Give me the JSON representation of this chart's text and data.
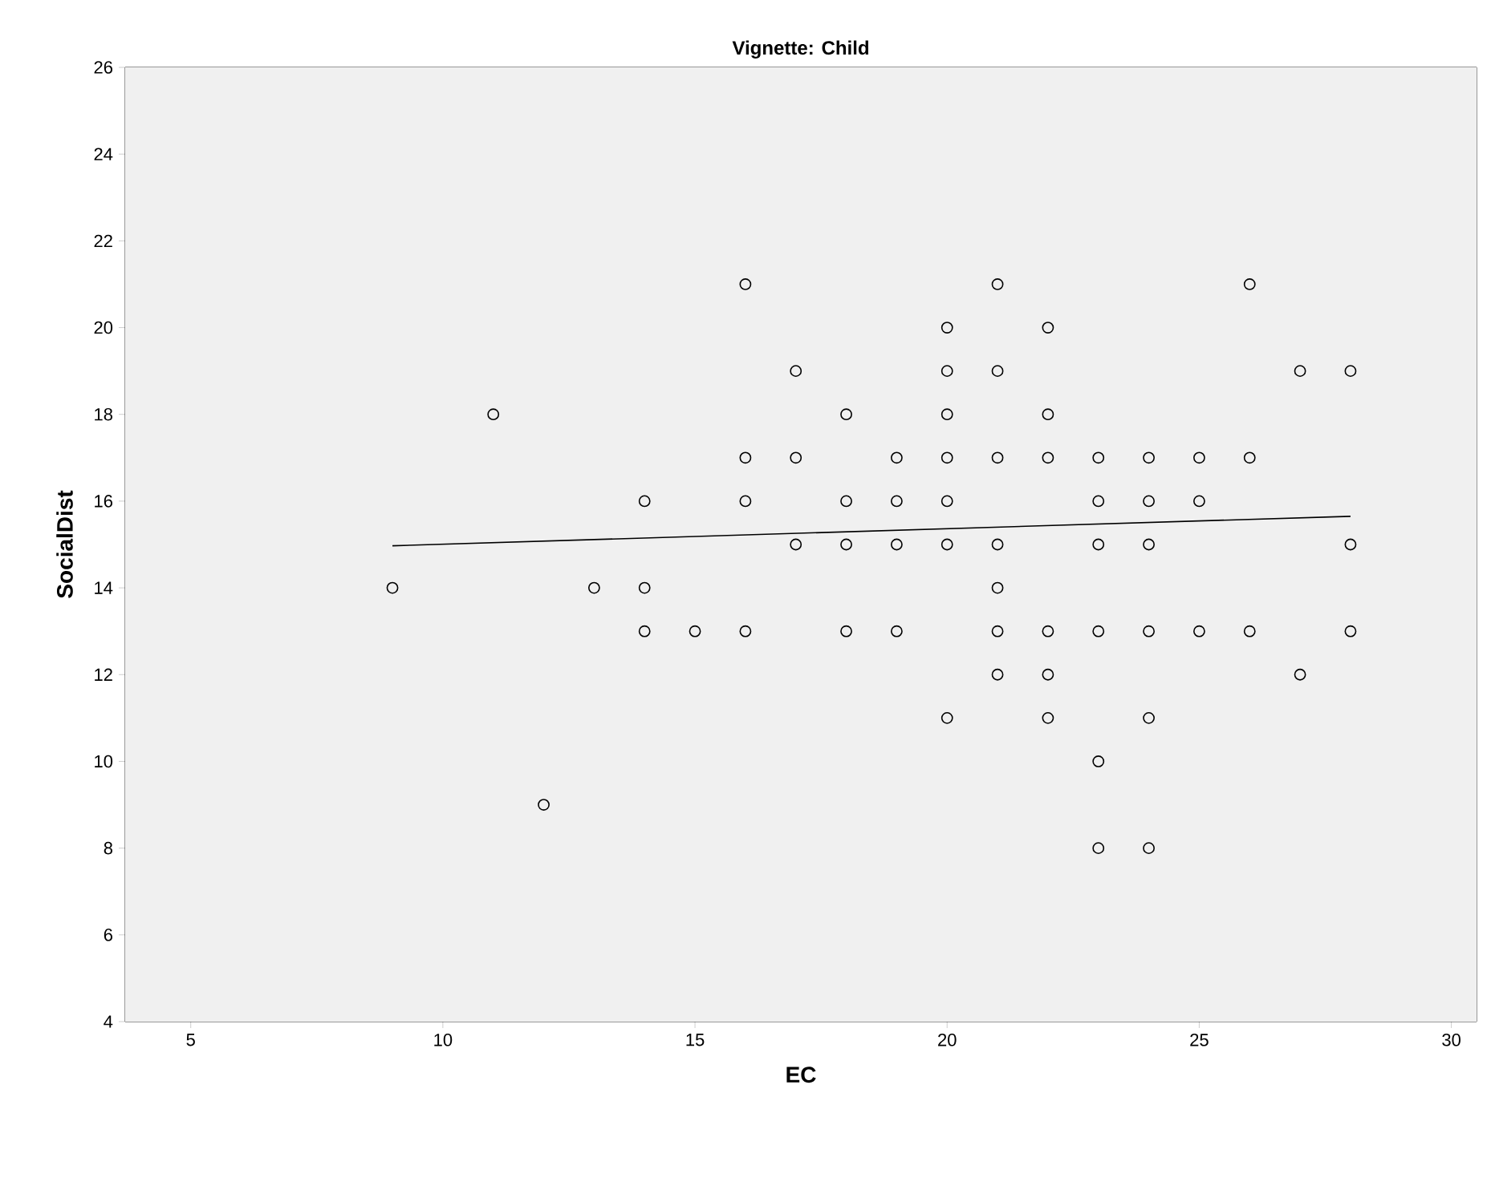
{
  "chart_data": {
    "type": "scatter",
    "title": "Vignette: Child",
    "xlabel": "EC",
    "ylabel": "SocialDist",
    "xlim": [
      3.7,
      30.5
    ],
    "ylim": [
      4,
      26
    ],
    "xticks": [
      5,
      10,
      15,
      20,
      25,
      30
    ],
    "yticks": [
      4,
      6,
      8,
      10,
      12,
      14,
      16,
      18,
      20,
      22,
      24,
      26
    ],
    "grid": false,
    "series": [
      {
        "marker": "circle",
        "color": "#000000",
        "x": [
          9,
          11,
          12,
          13,
          14,
          14,
          14,
          15,
          16,
          16,
          16,
          16,
          17,
          17,
          17,
          18,
          18,
          18,
          18,
          19,
          19,
          19,
          19,
          20,
          20,
          20,
          20,
          20,
          20,
          20,
          21,
          21,
          21,
          21,
          21,
          21,
          21,
          22,
          22,
          22,
          22,
          22,
          22,
          23,
          23,
          23,
          23,
          23,
          23,
          24,
          24,
          24,
          24,
          24,
          24,
          25,
          25,
          25,
          26,
          26,
          26,
          27,
          27,
          28,
          28,
          28
        ],
        "values": [
          14,
          18,
          9,
          14,
          16,
          14,
          13,
          13,
          21,
          17,
          16,
          13,
          19,
          17,
          15,
          18,
          16,
          15,
          13,
          17,
          16,
          15,
          13,
          20,
          19,
          18,
          17,
          16,
          15,
          11,
          21,
          19,
          17,
          15,
          14,
          13,
          12,
          20,
          18,
          17,
          13,
          12,
          11,
          17,
          16,
          15,
          13,
          10,
          8,
          17,
          16,
          15,
          13,
          11,
          8,
          17,
          16,
          13,
          21,
          17,
          13,
          19,
          12,
          19,
          15,
          13
        ]
      },
      {
        "type": "line",
        "marker": "none",
        "color": "#000000",
        "x": [
          9,
          28
        ],
        "values": [
          14.97,
          15.65
        ]
      }
    ]
  }
}
